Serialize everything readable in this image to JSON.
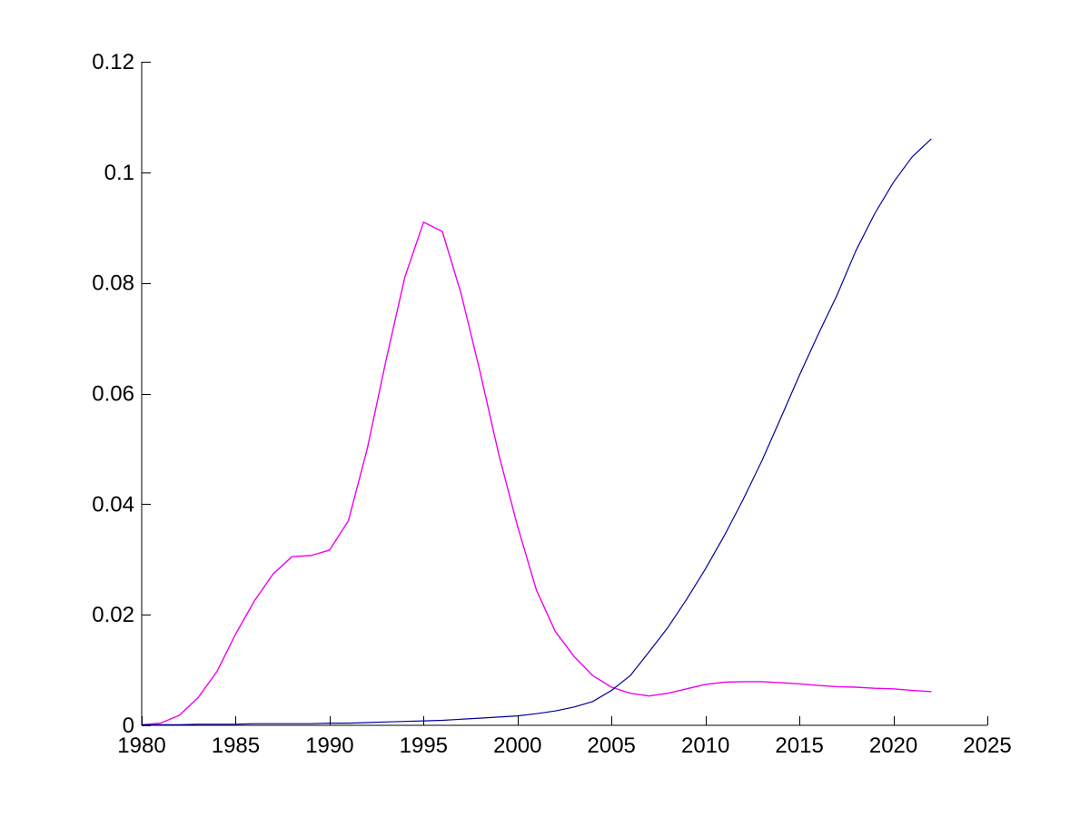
{
  "figure": {
    "background_color": "#ffffff",
    "axis_color": "#000000",
    "tick_label_color": "#000000"
  },
  "chart_data": {
    "type": "line",
    "title": "",
    "xlabel": "",
    "ylabel": "",
    "grid": false,
    "legend": "none",
    "xlim": [
      1980,
      2025
    ],
    "ylim": [
      0,
      0.12
    ],
    "x_ticks": [
      1980,
      1985,
      1990,
      1995,
      2000,
      2005,
      2010,
      2015,
      2020,
      2025
    ],
    "x_tick_labels": [
      "1980",
      "1985",
      "1990",
      "1995",
      "2000",
      "2005",
      "2010",
      "2015",
      "2020",
      "2025"
    ],
    "y_ticks": [
      0,
      0.02,
      0.04,
      0.06,
      0.08,
      0.1,
      0.12
    ],
    "y_tick_labels": [
      "0",
      "0.02",
      "0.04",
      "0.06",
      "0.08",
      "0.1",
      "0.12"
    ],
    "x": [
      1980,
      1981,
      1982,
      1983,
      1984,
      1985,
      1986,
      1987,
      1988,
      1989,
      1990,
      1991,
      1992,
      1993,
      1994,
      1995,
      1996,
      1997,
      1998,
      1999,
      2000,
      2001,
      2002,
      2003,
      2004,
      2005,
      2006,
      2007,
      2008,
      2009,
      2010,
      2011,
      2012,
      2013,
      2014,
      2015,
      2016,
      2017,
      2018,
      2019,
      2020,
      2021,
      2022
    ],
    "series": [
      {
        "name": "magenta-series",
        "color": "#EE00EE",
        "stroke_width": 1.4,
        "values": [
          0.0001,
          0.0004,
          0.0018,
          0.005,
          0.0097,
          0.0165,
          0.0225,
          0.0274,
          0.0305,
          0.0307,
          0.0317,
          0.037,
          0.05,
          0.066,
          0.081,
          0.091,
          0.0893,
          0.078,
          0.064,
          0.049,
          0.036,
          0.0245,
          0.017,
          0.0125,
          0.009,
          0.0069,
          0.0058,
          0.0053,
          0.0058,
          0.0066,
          0.0074,
          0.0078,
          0.0079,
          0.0079,
          0.0077,
          0.0075,
          0.0072,
          0.007,
          0.0069,
          0.0067,
          0.0066,
          0.0063,
          0.0061
        ]
      },
      {
        "name": "blue-series",
        "color": "#000099",
        "stroke_width": 1.2,
        "values": [
          0.0001,
          0.0001,
          0.0001,
          0.0002,
          0.0002,
          0.0002,
          0.0003,
          0.0003,
          0.0003,
          0.0003,
          0.0004,
          0.0004,
          0.0005,
          0.0006,
          0.0007,
          0.0008,
          0.0009,
          0.0011,
          0.0013,
          0.0015,
          0.0017,
          0.0021,
          0.0026,
          0.0033,
          0.0043,
          0.0063,
          0.009,
          0.0133,
          0.0177,
          0.0228,
          0.0283,
          0.0343,
          0.0408,
          0.0478,
          0.0555,
          0.0633,
          0.0707,
          0.0778,
          0.0858,
          0.0925,
          0.0982,
          0.1028,
          0.106
        ]
      }
    ]
  }
}
